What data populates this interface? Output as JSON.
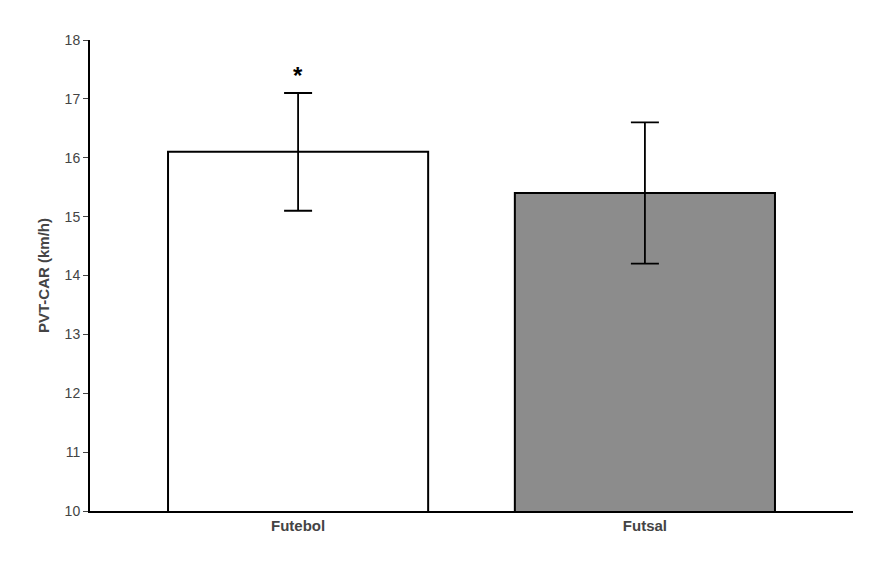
{
  "chart_data": {
    "type": "bar",
    "categories": [
      "Futebol",
      "Futsal"
    ],
    "values": [
      16.1,
      15.4
    ],
    "errors": [
      1.0,
      1.2
    ],
    "colors": [
      "#ffffff",
      "#8c8c8c"
    ],
    "ylabel": "PVT-CAR (km/h)",
    "ylim": [
      10,
      18
    ],
    "yticks": [
      10,
      11,
      12,
      13,
      14,
      15,
      16,
      17,
      18
    ],
    "grid": false,
    "annotations": [
      {
        "text": "*",
        "category": "Futebol"
      }
    ]
  }
}
